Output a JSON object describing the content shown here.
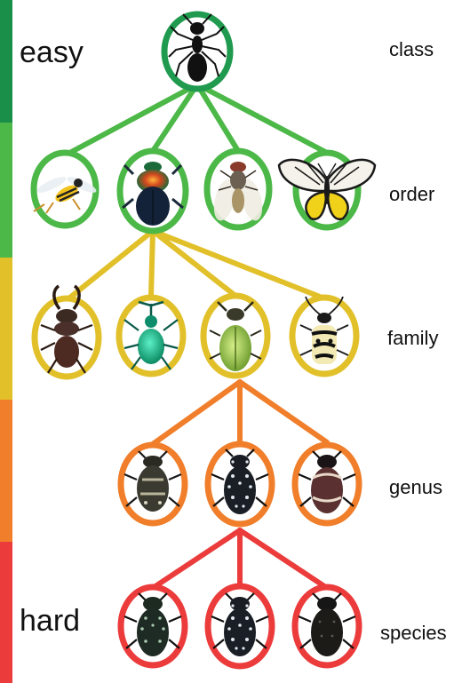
{
  "difficulty": {
    "easy": "easy",
    "hard": "hard"
  },
  "colors": {
    "class": "#1f9a4e",
    "order": "#4cb848",
    "family": "#e1c02a",
    "genus": "#f07e2a",
    "species": "#ec3b3b",
    "bar_dark_green": "#1a8f4a"
  },
  "levels": [
    {
      "key": "class",
      "label": "class",
      "color": "#1f9a4e",
      "nodes": [
        {
          "icon": "ant-icon"
        }
      ]
    },
    {
      "key": "order",
      "label": "order",
      "color": "#4cb848",
      "nodes": [
        {
          "icon": "wasp-icon"
        },
        {
          "icon": "dung-beetle-icon"
        },
        {
          "icon": "fly-icon"
        },
        {
          "icon": "butterfly-icon"
        }
      ]
    },
    {
      "key": "family",
      "label": "family",
      "color": "#e1c02a",
      "nodes": [
        {
          "icon": "stag-beetle-icon"
        },
        {
          "icon": "weevil-icon"
        },
        {
          "icon": "chafer-beetle-icon"
        },
        {
          "icon": "longhorn-beetle-icon"
        }
      ]
    },
    {
      "key": "genus",
      "label": "genus",
      "color": "#f07e2a",
      "nodes": [
        {
          "icon": "flower-chafer-icon"
        },
        {
          "icon": "spotted-chafer-icon"
        },
        {
          "icon": "brown-chafer-icon"
        }
      ]
    },
    {
      "key": "species",
      "label": "species",
      "color": "#ec3b3b",
      "nodes": [
        {
          "icon": "spotted-chafer-a-icon"
        },
        {
          "icon": "spotted-chafer-b-icon"
        },
        {
          "icon": "dark-chafer-icon"
        }
      ]
    }
  ]
}
